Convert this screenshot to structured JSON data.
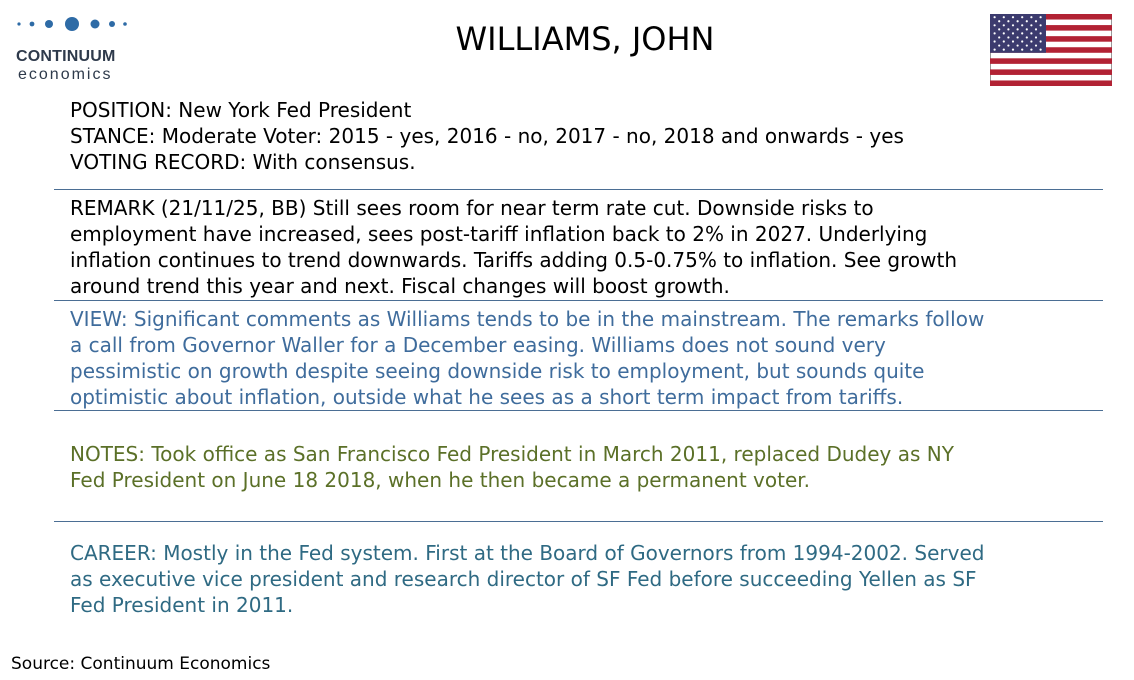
{
  "logo": {
    "name": "CONTINUUM",
    "sub": "economics",
    "dot_color": "#2e6ba6"
  },
  "title": "WILLIAMS, JOHN",
  "flag": {
    "icon": "us-flag-icon",
    "red": "#b22234",
    "blue": "#3c3b6e"
  },
  "profile": {
    "position": "POSITION: New York Fed President",
    "stance": "STANCE: Moderate    Voter: 2015 - yes, 2016 - no, 2017 - no, 2018 and onwards - yes",
    "voting_record": "VOTING RECORD: With consensus."
  },
  "remark": {
    "lines": [
      "REMARK (21/11/25, BB) Still sees room for near term rate cut. Downside risks to",
      "employment have increased, sees post-tariff inflation back to 2% in 2027.  Underlying",
      "inflation continues to trend downwards. Tariffs adding 0.5-0.75% to inflation. See growth",
      "around trend this year and next. Fiscal changes will boost growth."
    ]
  },
  "view": {
    "color": "#3f6c9c",
    "lines": [
      "VIEW: Significant comments as Williams tends to be in the mainstream. The remarks follow",
      "a call from Governor Waller for a December easing. Williams does not sound very",
      "pessimistic on growth despite seeing downside risk to employment, but sounds quite",
      "optimistic about inflation, outside what he sees as a short term impact from tariffs."
    ]
  },
  "notes": {
    "color": "#5b7028",
    "lines": [
      "NOTES: Took office as San Francisco Fed President in March 2011, replaced Dudey as NY",
      "Fed President on June 18 2018, when he then became a permanent voter."
    ]
  },
  "career": {
    "color": "#2f6a83",
    "lines": [
      "CAREER: Mostly in the Fed system. First at the Board of Governors from 1994-2002. Served",
      "as executive vice president and research director of SF Fed before succeeding Yellen as SF",
      "Fed President in 2011."
    ]
  },
  "source": "Source: Continuum Economics"
}
